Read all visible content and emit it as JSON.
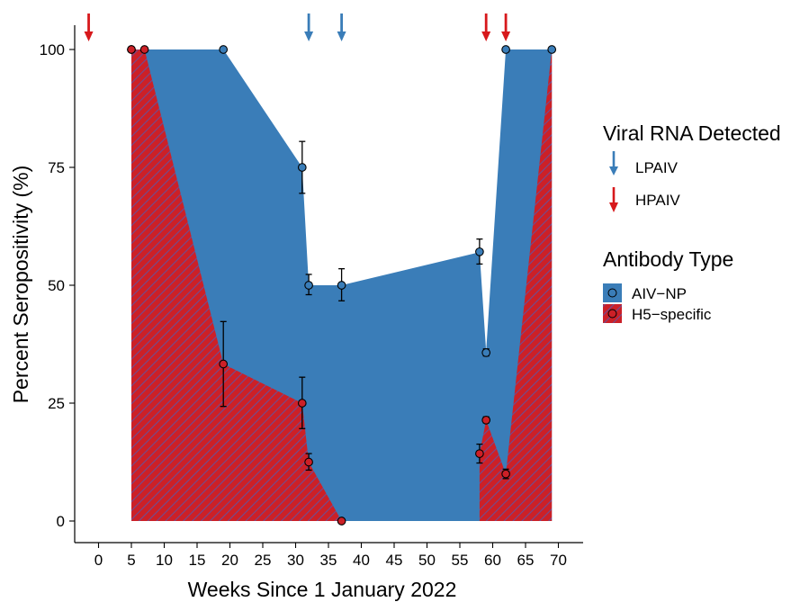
{
  "chart_data": {
    "type": "area",
    "xlabel": "Weeks Since 1 January 2022",
    "ylabel": "Percent Seropositivity (%)",
    "xlim": [
      -2.5,
      72
    ],
    "ylim": [
      0,
      100
    ],
    "xticks": [
      0,
      5,
      10,
      15,
      20,
      25,
      30,
      35,
      40,
      45,
      50,
      55,
      60,
      65,
      70
    ],
    "yticks": [
      0,
      25,
      50,
      75,
      100
    ],
    "grid": false,
    "legend_position": "right",
    "series": [
      {
        "name": "AIV-NP",
        "color": "#3a7db8",
        "fill": "solid",
        "area_polygon": [
          [
            5,
            0
          ],
          [
            5,
            100
          ],
          [
            19,
            100
          ],
          [
            31,
            75
          ],
          [
            32,
            50
          ],
          [
            37,
            50
          ],
          [
            58,
            57
          ],
          [
            59,
            36
          ],
          [
            62,
            100
          ],
          [
            69,
            100
          ],
          [
            69,
            0
          ]
        ],
        "points": [
          {
            "x": 5,
            "y": 100
          },
          {
            "x": 19,
            "y": 100
          },
          {
            "x": 31,
            "y": 75,
            "err_low": 69.5,
            "err_high": 80.5
          },
          {
            "x": 32,
            "y": 50,
            "err_low": 48,
            "err_high": 52.3
          },
          {
            "x": 37,
            "y": 50,
            "err_low": 46.7,
            "err_high": 53.5
          },
          {
            "x": 58,
            "y": 57.1,
            "err_low": 54.5,
            "err_high": 59.8
          },
          {
            "x": 59,
            "y": 35.7,
            "err_low": 35,
            "err_high": 36.5
          },
          {
            "x": 62,
            "y": 100
          },
          {
            "x": 69,
            "y": 100
          }
        ]
      },
      {
        "name": "H5-specific",
        "color": "#cc2027",
        "fill": "hatched",
        "area_polygon": [
          [
            5,
            0
          ],
          [
            5,
            100
          ],
          [
            7,
            100
          ],
          [
            19,
            33.3
          ],
          [
            31,
            25
          ],
          [
            32,
            12.5
          ],
          [
            37,
            0
          ],
          [
            58,
            0
          ],
          [
            58,
            14.3
          ],
          [
            59,
            21.4
          ],
          [
            62,
            10
          ],
          [
            69,
            100
          ],
          [
            69,
            0
          ]
        ],
        "points": [
          {
            "x": 5,
            "y": 100
          },
          {
            "x": 7,
            "y": 100
          },
          {
            "x": 19,
            "y": 33.3,
            "err_low": 24.3,
            "err_high": 42.3
          },
          {
            "x": 31,
            "y": 25,
            "err_low": 19.6,
            "err_high": 30.5
          },
          {
            "x": 32,
            "y": 12.5,
            "err_low": 10.8,
            "err_high": 14.3
          },
          {
            "x": 37,
            "y": 0
          },
          {
            "x": 58,
            "y": 14.3,
            "err_low": 12.3,
            "err_high": 16.3
          },
          {
            "x": 59,
            "y": 21.4,
            "err_low": 20.8,
            "err_high": 22.1
          },
          {
            "x": 62,
            "y": 10,
            "err_low": 9,
            "err_high": 11
          }
        ]
      }
    ],
    "detections": [
      {
        "type": "HPAIV",
        "x": -1.5,
        "color": "#d7191c"
      },
      {
        "type": "LPAIV",
        "x": 32,
        "color": "#3a7db8"
      },
      {
        "type": "LPAIV",
        "x": 37,
        "color": "#3a7db8"
      },
      {
        "type": "HPAIV",
        "x": 59,
        "color": "#d7191c"
      },
      {
        "type": "HPAIV",
        "x": 62,
        "color": "#d7191c"
      }
    ],
    "legend": {
      "detection_title": "Viral RNA Detected",
      "detection_items": [
        {
          "label": "LPAIV",
          "color": "#3a7db8"
        },
        {
          "label": "HPAIV",
          "color": "#d7191c"
        }
      ],
      "antibody_title": "Antibody Type",
      "antibody_items": [
        {
          "label": "AIV−NP",
          "color": "#3a7db8"
        },
        {
          "label": "H5−specific",
          "color": "#cc2027"
        }
      ]
    }
  }
}
